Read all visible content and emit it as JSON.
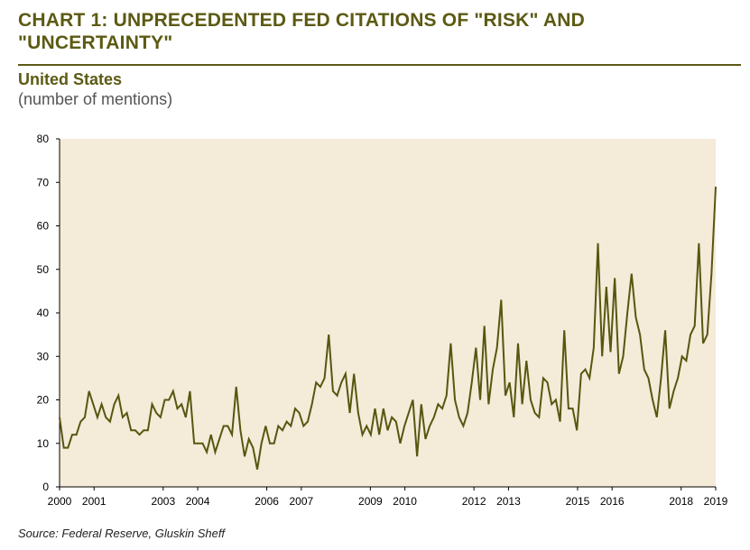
{
  "header": {
    "title": "CHART 1: UNPRECEDENTED FED CITATIONS OF \"RISK\" AND \"UNCERTAINTY\"",
    "subtitle": "United States",
    "units": "(number of mentions)"
  },
  "footer": {
    "source": "Source: Federal Reserve, Gluskin Sheff"
  },
  "colors": {
    "accent": "#5c5a13",
    "line": "#58560f",
    "plot_background": "#f4ebd9"
  },
  "chart_data": {
    "type": "line",
    "title": "CHART 1: UNPRECEDENTED FED CITATIONS OF \"RISK\" AND \"UNCERTAINTY\"",
    "subtitle": "United States",
    "ylabel": "(number of mentions)",
    "xlabel": "",
    "ylim": [
      0,
      80
    ],
    "yticks": [
      0,
      10,
      20,
      30,
      40,
      50,
      60,
      70,
      80
    ],
    "xlim": [
      2000,
      2019
    ],
    "xticks": [
      {
        "value": 2000,
        "label": "2000"
      },
      {
        "value": 2001,
        "label": "2001"
      },
      {
        "value": 2003,
        "label": "2003"
      },
      {
        "value": 2004,
        "label": "2004"
      },
      {
        "value": 2006,
        "label": "2006"
      },
      {
        "value": 2007,
        "label": "2007"
      },
      {
        "value": 2009,
        "label": "2009"
      },
      {
        "value": 2010,
        "label": "2010"
      },
      {
        "value": 2012,
        "label": "2012"
      },
      {
        "value": 2013,
        "label": "2013"
      },
      {
        "value": 2015,
        "label": "2015"
      },
      {
        "value": 2016,
        "label": "2016"
      },
      {
        "value": 2018,
        "label": "2018"
      },
      {
        "value": 2019,
        "label": "2019"
      }
    ],
    "grid": false,
    "legend": "none",
    "series": [
      {
        "values": [
          16,
          9,
          9,
          12,
          12,
          15,
          16,
          22,
          19,
          16,
          19,
          16,
          15,
          19,
          21,
          16,
          17,
          13,
          13,
          12,
          13,
          13,
          19,
          17,
          16,
          20,
          20,
          22,
          18,
          19,
          16,
          22,
          10,
          10,
          10,
          8,
          12,
          8,
          11,
          14,
          14,
          12,
          23,
          13,
          7,
          11,
          9,
          4,
          10,
          14,
          10,
          10,
          14,
          13,
          15,
          14,
          18,
          17,
          14,
          15,
          19,
          24,
          23,
          25,
          35,
          22,
          21,
          24,
          26,
          17,
          26,
          17,
          12,
          14,
          12,
          18,
          12,
          18,
          13,
          16,
          15,
          10,
          14,
          17,
          20,
          7,
          19,
          11,
          14,
          16,
          19,
          18,
          21,
          33,
          20,
          16,
          14,
          17,
          24,
          32,
          20,
          37,
          19,
          27,
          32,
          43,
          21,
          24,
          16,
          33,
          19,
          29,
          20,
          17,
          16,
          25,
          24,
          19,
          20,
          15,
          36,
          18,
          18,
          13,
          26,
          27,
          25,
          32,
          56,
          30,
          46,
          31,
          48,
          26,
          30,
          40,
          49,
          39,
          35,
          27,
          25,
          20,
          16,
          25,
          36,
          18,
          22,
          25,
          30,
          29,
          35,
          37,
          56,
          33,
          35,
          49,
          69
        ]
      }
    ]
  }
}
